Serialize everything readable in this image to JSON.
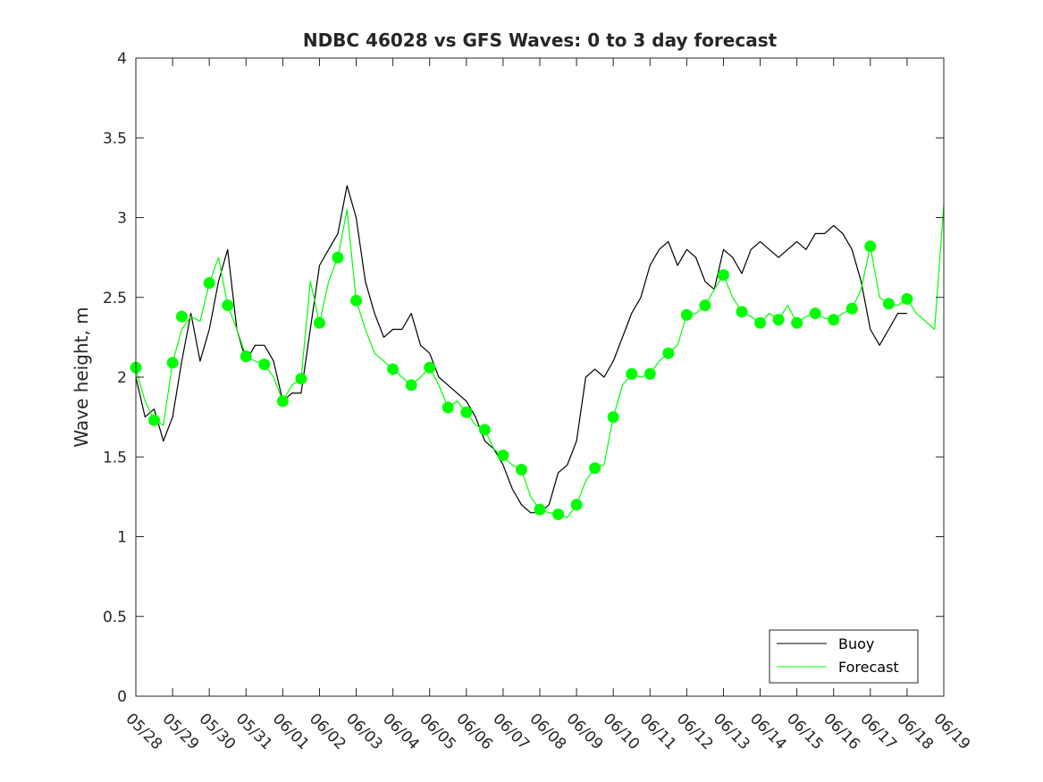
{
  "chart_data": {
    "type": "line",
    "title": "NDBC 46028 vs GFS Waves: 0 to 3 day forecast",
    "xlabel": "",
    "ylabel": "Wave height, m",
    "x_ticks": [
      "05/28",
      "05/29",
      "05/30",
      "05/31",
      "06/01",
      "06/02",
      "06/03",
      "06/04",
      "06/05",
      "06/06",
      "06/07",
      "06/08",
      "06/09",
      "06/10",
      "06/11",
      "06/12",
      "06/13",
      "06/14",
      "06/15",
      "06/16",
      "06/17",
      "06/18",
      "06/19"
    ],
    "y_ticks": [
      "0",
      "0.5",
      "1",
      "1.5",
      "2",
      "2.5",
      "3",
      "3.5",
      "4"
    ],
    "xlim_days": [
      0,
      22
    ],
    "ylim": [
      0,
      4
    ],
    "grid": false,
    "legend": {
      "position": "bottom-right",
      "entries": [
        {
          "label": "Buoy",
          "color": "#000000"
        },
        {
          "label": "Forecast",
          "color": "#00ff00"
        }
      ]
    },
    "series": [
      {
        "name": "Buoy",
        "color": "#000000",
        "x": [
          0,
          0.25,
          0.5,
          0.75,
          1,
          1.25,
          1.5,
          1.75,
          2,
          2.25,
          2.5,
          2.75,
          3,
          3.25,
          3.5,
          3.75,
          4,
          4.25,
          4.5,
          4.75,
          5,
          5.25,
          5.5,
          5.75,
          6,
          6.25,
          6.5,
          6.75,
          7,
          7.25,
          7.5,
          7.75,
          8,
          8.25,
          8.5,
          8.75,
          9,
          9.25,
          9.5,
          9.75,
          10,
          10.25,
          10.5,
          10.75,
          11,
          11.25,
          11.5,
          11.75,
          12,
          12.25,
          12.5,
          12.75,
          13,
          13.25,
          13.5,
          13.75,
          14,
          14.25,
          14.5,
          14.75,
          15,
          15.25,
          15.5,
          15.75,
          16,
          16.25,
          16.5,
          16.75,
          17,
          17.25,
          17.5,
          17.75,
          18,
          18.25,
          18.5,
          18.75,
          19,
          19.25,
          19.5,
          19.75,
          20,
          20.25,
          20.5,
          20.75,
          21
        ],
        "y": [
          2.0,
          1.75,
          1.8,
          1.6,
          1.75,
          2.1,
          2.4,
          2.1,
          2.3,
          2.6,
          2.8,
          2.3,
          2.1,
          2.2,
          2.2,
          2.1,
          1.85,
          1.9,
          1.9,
          2.3,
          2.7,
          2.8,
          2.9,
          3.2,
          3.0,
          2.6,
          2.4,
          2.25,
          2.3,
          2.3,
          2.4,
          2.2,
          2.15,
          2.0,
          1.95,
          1.9,
          1.85,
          1.75,
          1.6,
          1.55,
          1.45,
          1.3,
          1.2,
          1.15,
          1.15,
          1.2,
          1.4,
          1.45,
          1.6,
          2.0,
          2.05,
          2.0,
          2.1,
          2.25,
          2.4,
          2.5,
          2.7,
          2.8,
          2.85,
          2.7,
          2.8,
          2.75,
          2.6,
          2.55,
          2.8,
          2.75,
          2.65,
          2.8,
          2.85,
          2.8,
          2.75,
          2.8,
          2.85,
          2.8,
          2.9,
          2.9,
          2.95,
          2.9,
          2.8,
          2.6,
          2.3,
          2.2,
          2.3,
          2.4,
          2.4
        ]
      },
      {
        "name": "Forecast",
        "color": "#00ff00",
        "x": [
          0,
          0.25,
          0.5,
          0.75,
          1,
          1.25,
          1.5,
          1.75,
          2,
          2.25,
          2.5,
          2.75,
          3,
          3.25,
          3.5,
          3.75,
          4,
          4.25,
          4.5,
          4.75,
          5,
          5.25,
          5.5,
          5.75,
          6,
          6.25,
          6.5,
          6.75,
          7,
          7.25,
          7.5,
          7.75,
          8,
          8.25,
          8.5,
          8.75,
          9,
          9.25,
          9.5,
          9.75,
          10,
          10.25,
          10.5,
          10.75,
          11,
          11.25,
          11.5,
          11.75,
          12,
          12.25,
          12.5,
          12.75,
          13,
          13.25,
          13.5,
          13.75,
          14,
          14.25,
          14.5,
          14.75,
          15,
          15.25,
          15.5,
          15.75,
          16,
          16.25,
          16.5,
          16.75,
          17,
          17.25,
          17.5,
          17.75,
          18,
          18.25,
          18.5,
          18.75,
          19,
          19.25,
          19.5,
          19.75,
          20,
          20.25,
          20.5,
          20.75,
          21,
          21.25,
          21.5,
          21.75,
          22
        ],
        "y": [
          2.05,
          1.85,
          1.73,
          1.7,
          2.09,
          2.3,
          2.38,
          2.35,
          2.59,
          2.75,
          2.45,
          2.3,
          2.13,
          2.1,
          2.08,
          2.0,
          1.85,
          1.95,
          1.99,
          2.6,
          2.34,
          2.6,
          2.75,
          3.05,
          2.48,
          2.3,
          2.15,
          2.1,
          2.05,
          2.0,
          1.95,
          2.0,
          2.06,
          1.95,
          1.81,
          1.85,
          1.78,
          1.7,
          1.67,
          1.55,
          1.5,
          1.45,
          1.42,
          1.25,
          1.17,
          1.15,
          1.14,
          1.12,
          1.2,
          1.35,
          1.43,
          1.45,
          1.75,
          1.95,
          2.02,
          2.0,
          2.02,
          2.1,
          2.15,
          2.2,
          2.39,
          2.4,
          2.45,
          2.55,
          2.64,
          2.5,
          2.41,
          2.38,
          2.34,
          2.4,
          2.36,
          2.45,
          2.34,
          2.38,
          2.4,
          2.37,
          2.36,
          2.4,
          2.43,
          2.55,
          2.82,
          2.5,
          2.46,
          2.45,
          2.49,
          2.4,
          2.35,
          2.3,
          3.08
        ]
      },
      {
        "name": "Forecast start points",
        "color": "#00ff00",
        "marker": "circle",
        "x": [
          0,
          0.5,
          1,
          1.25,
          2,
          2.5,
          3,
          3.5,
          4,
          4.5,
          5,
          5.5,
          6,
          7,
          7.5,
          8,
          8.5,
          9,
          9.5,
          10,
          10.5,
          11,
          11.5,
          12,
          12.5,
          13,
          13.5,
          14,
          14.5,
          15,
          15.5,
          16,
          16.5,
          17,
          17.5,
          18,
          18.5,
          19,
          19.5,
          20,
          20.5,
          21
        ],
        "y": [
          2.06,
          1.73,
          2.09,
          2.38,
          2.59,
          2.45,
          2.13,
          2.08,
          1.85,
          1.99,
          2.34,
          2.75,
          2.48,
          2.05,
          1.95,
          2.06,
          1.81,
          1.78,
          1.67,
          1.51,
          1.42,
          1.17,
          1.14,
          1.2,
          1.43,
          1.75,
          2.02,
          2.02,
          2.15,
          2.39,
          2.45,
          2.64,
          2.41,
          2.34,
          2.36,
          2.34,
          2.4,
          2.36,
          2.43,
          2.82,
          2.46,
          2.49
        ]
      }
    ]
  }
}
